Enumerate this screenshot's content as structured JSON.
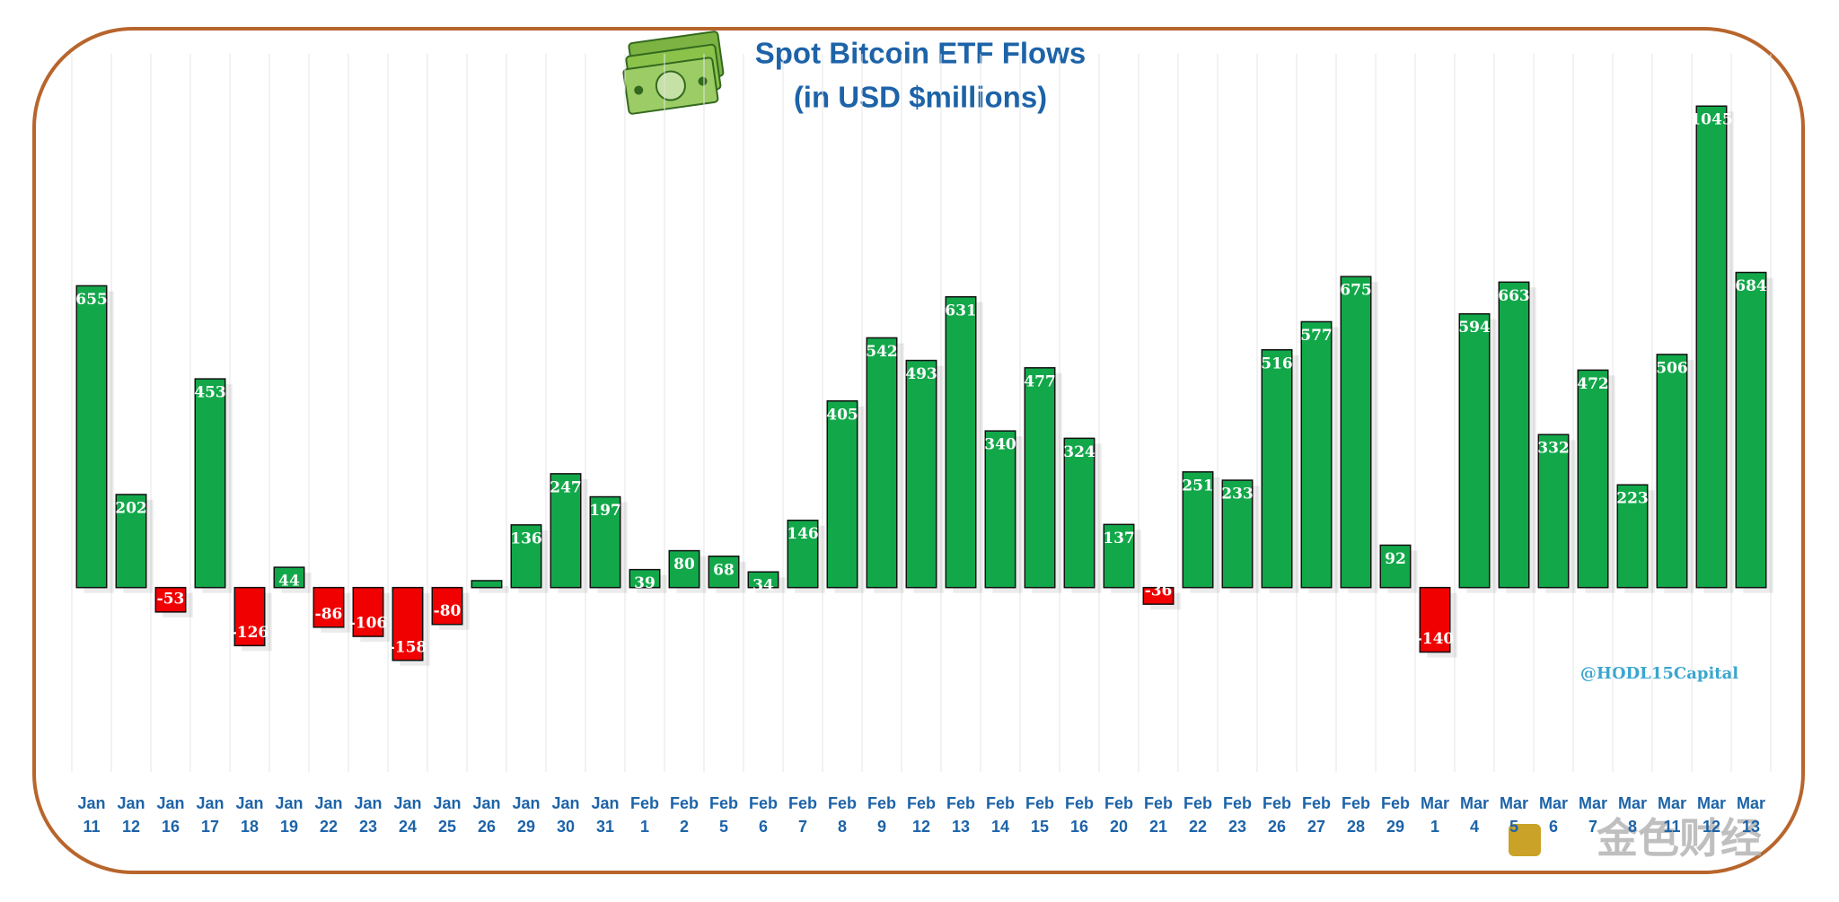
{
  "chart_data": {
    "type": "bar",
    "title": "Spot Bitcoin ETF Flows",
    "subtitle": "(in USD $millions)",
    "categories": [
      "Jan 11",
      "Jan 12",
      "Jan 16",
      "Jan 17",
      "Jan 18",
      "Jan 19",
      "Jan 22",
      "Jan 23",
      "Jan 24",
      "Jan 25",
      "Jan 26",
      "Jan 29",
      "Jan 30",
      "Jan 31",
      "Feb 1",
      "Feb 2",
      "Feb 5",
      "Feb 6",
      "Feb 7",
      "Feb 8",
      "Feb 9",
      "Feb 12",
      "Feb 13",
      "Feb 14",
      "Feb 15",
      "Feb 16",
      "Feb 20",
      "Feb 21",
      "Feb 22",
      "Feb 23",
      "Feb 26",
      "Feb 27",
      "Feb 28",
      "Feb 29",
      "Mar 1",
      "Mar 4",
      "Mar 5",
      "Mar 6",
      "Mar 7",
      "Mar 8",
      "Mar 11",
      "Mar 12",
      "Mar 13"
    ],
    "values": [
      655,
      202,
      -53,
      453,
      -126,
      44,
      -86,
      -106,
      -158,
      -80,
      15,
      136,
      247,
      197,
      39,
      80,
      68,
      34,
      146,
      405,
      542,
      493,
      631,
      340,
      477,
      324,
      137,
      -36,
      251,
      233,
      516,
      577,
      675,
      92,
      -140,
      594,
      663,
      332,
      472,
      223,
      506,
      1045,
      684
    ],
    "value_labels": [
      "655",
      "202",
      "-53",
      "453",
      "-126",
      "44",
      "-86",
      "-106",
      "-158",
      "-80",
      null,
      "136",
      "247",
      "197",
      "39",
      "80",
      "68",
      "34",
      "146",
      "405",
      "542",
      "493",
      "631",
      "340",
      "477",
      "324",
      "137",
      "-36",
      "251",
      "233",
      "516",
      "577",
      "675",
      "92",
      "-140",
      "594",
      "663",
      "332",
      "472",
      "223",
      "506",
      "1045",
      "684"
    ],
    "positive_color": "#12a84a",
    "negative_color": "#f00000",
    "ylim": [
      -400,
      1100
    ],
    "grid": true,
    "watermark": "@HODL15Capital",
    "logo": "金色财经"
  }
}
